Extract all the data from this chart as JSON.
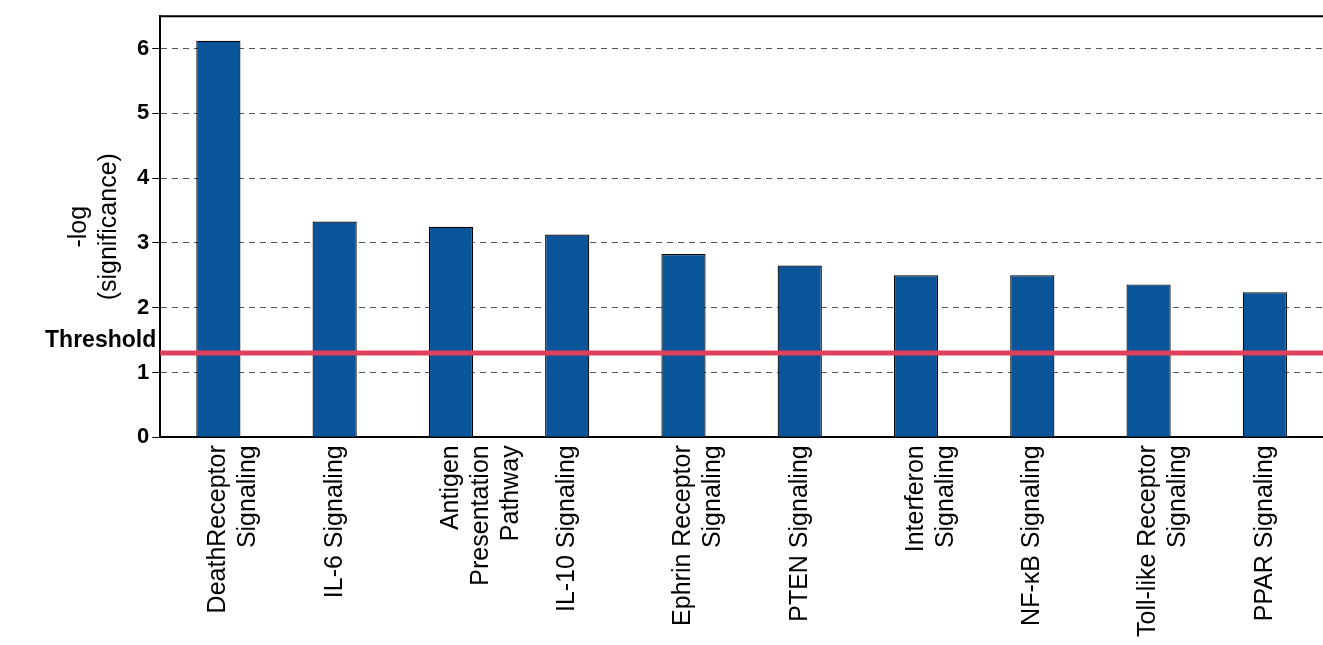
{
  "chart_data": {
    "type": "bar",
    "ylabel": "-log (significance)",
    "categories": [
      "DeathReceptor Signaling",
      "IL-6 Signaling",
      "Antigen Presentation Pathway",
      "IL-10 Signaling",
      "Ephrin Receptor Signaling",
      "PTEN Signaling",
      "Interferon Signaling",
      "NF-κB Signaling",
      "Toll-like Receptor Signaling",
      "PPAR Signaling"
    ],
    "values": [
      6.12,
      3.33,
      3.25,
      3.13,
      2.83,
      2.65,
      2.5,
      2.5,
      2.36,
      2.24
    ],
    "color": "#0a5599",
    "ylim": [
      0,
      6.5
    ],
    "yticks": [
      0,
      1,
      2,
      3,
      4,
      5,
      6
    ],
    "grid": "y",
    "legend": false,
    "ref_lines": [
      {
        "axis": "y",
        "value": 1.3,
        "label": "Threshold",
        "color": "#e0405c"
      }
    ]
  }
}
